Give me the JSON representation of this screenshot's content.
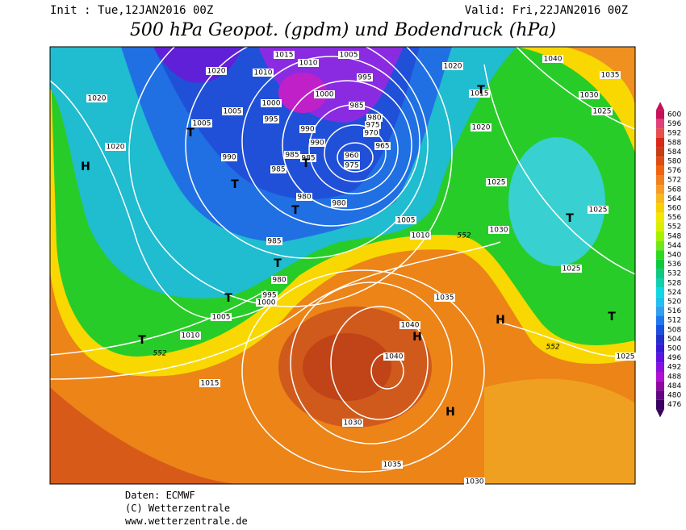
{
  "header": {
    "init": "Init : Tue,12JAN2016 00Z",
    "valid": "Valid: Fri,22JAN2016 00Z",
    "title": "500 hPa Geopot. (gpdm) und Bodendruck (hPa)"
  },
  "colorbar": {
    "levels": [
      600,
      596,
      592,
      588,
      584,
      580,
      576,
      572,
      568,
      564,
      560,
      556,
      552,
      548,
      544,
      540,
      536,
      532,
      528,
      524,
      520,
      516,
      512,
      508,
      504,
      500,
      496,
      492,
      488,
      484,
      480,
      476
    ],
    "colors": [
      "#c8105a",
      "#e0407a",
      "#e85050",
      "#d82818",
      "#c83c14",
      "#e04c10",
      "#f06410",
      "#f08020",
      "#f89c28",
      "#f8b820",
      "#f8d000",
      "#f0e800",
      "#d8f000",
      "#a8f000",
      "#70e818",
      "#30d820",
      "#10c840",
      "#10c880",
      "#10d0b0",
      "#10d8e0",
      "#20c0f0",
      "#30a0f0",
      "#2078f0",
      "#1850e0",
      "#2030c8",
      "#3818d8",
      "#6010e0",
      "#8810e0",
      "#b010d0",
      "#9008a0",
      "#600880",
      "#380060"
    ]
  },
  "map": {
    "isobar_labels": [
      "1015",
      "1010",
      "1005",
      "995",
      "1020",
      "1010",
      "1000",
      "1000",
      "985",
      "980",
      "975",
      "970",
      "965",
      "960",
      "975",
      "1005",
      "1005",
      "995",
      "990",
      "990",
      "985",
      "985",
      "985",
      "990",
      "980",
      "980",
      "985",
      "980",
      "995",
      "1000",
      "1005",
      "1010",
      "1015",
      "1020",
      "1020",
      "1020",
      "1015",
      "1020",
      "1025",
      "1005",
      "1010",
      "1030",
      "1025",
      "1025",
      "1040",
      "1035",
      "1030",
      "1025",
      "1035",
      "1040",
      "1040",
      "1030",
      "1035",
      "1030",
      "1025"
    ],
    "highs": [
      "H",
      "H",
      "H",
      "H"
    ],
    "lows": [
      "T",
      "T",
      "T",
      "T",
      "T",
      "T",
      "T",
      "T",
      "T",
      "T"
    ],
    "contour_552": [
      "552",
      "552",
      "552"
    ]
  },
  "footer": {
    "source": "Daten: ECMWF",
    "copyright": "(C) Wetterzentrale",
    "url": "www.wetterzentrale.de"
  }
}
